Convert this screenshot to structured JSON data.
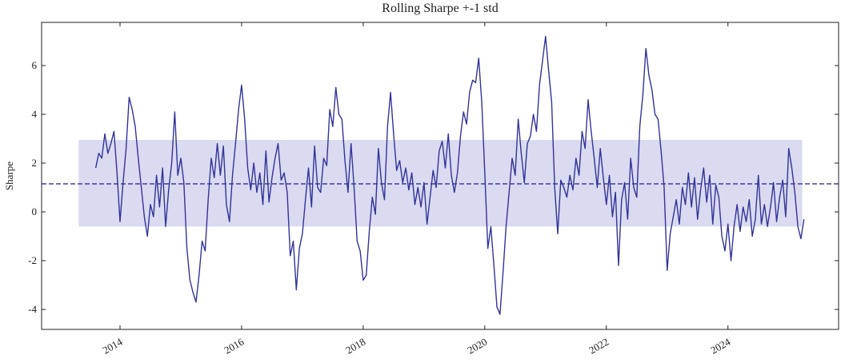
{
  "chart_data": {
    "type": "line",
    "title": "Rolling Sharpe +-1 std",
    "y_label": "Sharpe",
    "color": "#333399",
    "x": [
      2013.6,
      2013.65,
      2013.7,
      2013.75,
      2013.8,
      2013.85,
      2013.9,
      2013.95,
      2014.0,
      2014.05,
      2014.1,
      2014.15,
      2014.2,
      2014.25,
      2014.3,
      2014.35,
      2014.4,
      2014.45,
      2014.5,
      2014.55,
      2014.6,
      2014.65,
      2014.7,
      2014.75,
      2014.8,
      2014.85,
      2014.9,
      2014.95,
      2015.0,
      2015.05,
      2015.1,
      2015.15,
      2015.2,
      2015.25,
      2015.3,
      2015.35,
      2015.4,
      2015.45,
      2015.5,
      2015.55,
      2015.6,
      2015.65,
      2015.7,
      2015.75,
      2015.8,
      2015.85,
      2015.9,
      2015.95,
      2016.0,
      2016.05,
      2016.1,
      2016.15,
      2016.2,
      2016.25,
      2016.3,
      2016.35,
      2016.4,
      2016.45,
      2016.5,
      2016.55,
      2016.6,
      2016.65,
      2016.7,
      2016.75,
      2016.8,
      2016.85,
      2016.9,
      2016.95,
      2017.0,
      2017.05,
      2017.1,
      2017.15,
      2017.2,
      2017.25,
      2017.3,
      2017.35,
      2017.4,
      2017.45,
      2017.5,
      2017.55,
      2017.6,
      2017.65,
      2017.7,
      2017.75,
      2017.8,
      2017.85,
      2017.9,
      2017.95,
      2018.0,
      2018.05,
      2018.1,
      2018.15,
      2018.2,
      2018.25,
      2018.3,
      2018.35,
      2018.4,
      2018.45,
      2018.5,
      2018.55,
      2018.6,
      2018.65,
      2018.7,
      2018.75,
      2018.8,
      2018.85,
      2018.9,
      2018.95,
      2019.0,
      2019.05,
      2019.1,
      2019.15,
      2019.2,
      2019.25,
      2019.3,
      2019.35,
      2019.4,
      2019.45,
      2019.5,
      2019.55,
      2019.6,
      2019.65,
      2019.7,
      2019.75,
      2019.8,
      2019.85,
      2019.9,
      2019.95,
      2020.0,
      2020.05,
      2020.1,
      2020.15,
      2020.2,
      2020.25,
      2020.3,
      2020.35,
      2020.4,
      2020.45,
      2020.5,
      2020.55,
      2020.6,
      2020.65,
      2020.7,
      2020.75,
      2020.8,
      2020.85,
      2020.9,
      2020.95,
      2021.0,
      2021.05,
      2021.1,
      2021.15,
      2021.2,
      2021.25,
      2021.3,
      2021.35,
      2021.4,
      2021.45,
      2021.5,
      2021.55,
      2021.6,
      2021.65,
      2021.7,
      2021.75,
      2021.8,
      2021.85,
      2021.9,
      2021.95,
      2022.0,
      2022.05,
      2022.1,
      2022.15,
      2022.2,
      2022.25,
      2022.3,
      2022.35,
      2022.4,
      2022.45,
      2022.5,
      2022.55,
      2022.6,
      2022.65,
      2022.7,
      2022.75,
      2022.8,
      2022.85,
      2022.9,
      2022.95,
      2023.0,
      2023.05,
      2023.1,
      2023.15,
      2023.2,
      2023.25,
      2023.3,
      2023.35,
      2023.4,
      2023.45,
      2023.5,
      2023.55,
      2023.6,
      2023.65,
      2023.7,
      2023.75,
      2023.8,
      2023.85,
      2023.9,
      2023.95,
      2024.0,
      2024.05,
      2024.1,
      2024.15,
      2024.2,
      2024.25,
      2024.3,
      2024.35,
      2024.4,
      2024.45,
      2024.5,
      2024.55,
      2024.6,
      2024.65,
      2024.7,
      2024.75,
      2024.8,
      2024.85,
      2024.9,
      2024.95,
      2025.0,
      2025.05,
      2025.1,
      2025.15,
      2025.2,
      2025.25
    ],
    "values": [
      1.8,
      2.4,
      2.2,
      3.2,
      2.4,
      2.8,
      3.3,
      1.6,
      -0.4,
      1.2,
      2.6,
      4.7,
      4.2,
      3.5,
      2.2,
      1.0,
      -0.2,
      -1.0,
      0.3,
      -0.2,
      1.5,
      0.2,
      1.8,
      -0.6,
      0.9,
      2.0,
      4.1,
      1.5,
      2.2,
      1.2,
      -1.5,
      -2.8,
      -3.3,
      -3.7,
      -2.6,
      -1.2,
      -1.6,
      0.5,
      2.2,
      1.4,
      2.8,
      1.5,
      2.7,
      0.3,
      -0.4,
      1.5,
      2.8,
      4.2,
      5.2,
      3.8,
      1.8,
      0.9,
      2.0,
      0.8,
      1.6,
      0.3,
      2.5,
      0.4,
      1.4,
      2.2,
      2.8,
      1.3,
      1.6,
      0.8,
      -1.8,
      -1.2,
      -3.2,
      -1.5,
      -0.9,
      0.5,
      1.8,
      0.2,
      2.7,
      1.0,
      0.8,
      2.2,
      1.9,
      4.2,
      3.5,
      5.1,
      4.0,
      3.8,
      2.1,
      0.8,
      2.8,
      1.0,
      -1.2,
      -1.6,
      -2.8,
      -2.6,
      -0.8,
      0.6,
      -0.1,
      2.6,
      1.2,
      0.5,
      3.5,
      4.9,
      3.2,
      1.7,
      2.1,
      1.2,
      1.8,
      0.9,
      1.6,
      0.3,
      1.0,
      0.2,
      1.2,
      -0.5,
      0.6,
      1.7,
      1.0,
      2.5,
      2.9,
      1.8,
      3.2,
      1.5,
      0.8,
      1.6,
      3.1,
      4.1,
      3.6,
      4.9,
      5.4,
      5.3,
      6.3,
      4.5,
      1.6,
      -1.5,
      -0.6,
      -2.2,
      -3.9,
      -4.2,
      -2.5,
      -0.6,
      0.8,
      2.2,
      1.5,
      3.8,
      2.4,
      1.2,
      2.8,
      3.1,
      4.0,
      3.3,
      5.2,
      6.2,
      7.2,
      5.8,
      4.5,
      1.0,
      -0.9,
      1.3,
      1.0,
      0.6,
      1.5,
      0.9,
      2.2,
      1.5,
      3.3,
      2.6,
      4.6,
      3.3,
      2.2,
      1.0,
      2.6,
      1.4,
      0.3,
      1.5,
      -0.2,
      0.8,
      -2.2,
      0.5,
      1.2,
      -0.3,
      2.2,
      1.0,
      0.6,
      3.5,
      4.8,
      6.7,
      5.6,
      5.0,
      4.0,
      3.8,
      2.5,
      1.0,
      -2.4,
      -0.9,
      -0.2,
      0.5,
      -0.5,
      1.0,
      0.3,
      1.6,
      0.2,
      1.4,
      -0.3,
      0.9,
      1.8,
      0.4,
      1.5,
      -0.5,
      1.1,
      0.6,
      -1.0,
      -1.6,
      -0.5,
      -2.0,
      -0.6,
      0.3,
      -0.8,
      0.2,
      -0.4,
      0.5,
      -1.0,
      -0.3,
      1.5,
      -0.5,
      0.3,
      -0.6,
      0.2,
      1.2,
      -0.4,
      0.6,
      1.3,
      -0.2,
      2.6,
      1.8,
      0.8,
      -0.6,
      -1.1,
      -0.3
    ],
    "reference_line": 1.15,
    "band": {
      "x": [
        2013.32,
        2025.22
      ],
      "low": -0.6,
      "high": 2.95,
      "color": "#dadaf0"
    },
    "xlim": [
      2012.71,
      2025.82
    ],
    "xticks": [
      2014,
      2016,
      2018,
      2020,
      2022,
      2024
    ],
    "ylim": [
      -4.82,
      7.77
    ],
    "yticks": [
      -4,
      -2,
      0,
      2,
      4,
      6
    ],
    "grid": false
  }
}
